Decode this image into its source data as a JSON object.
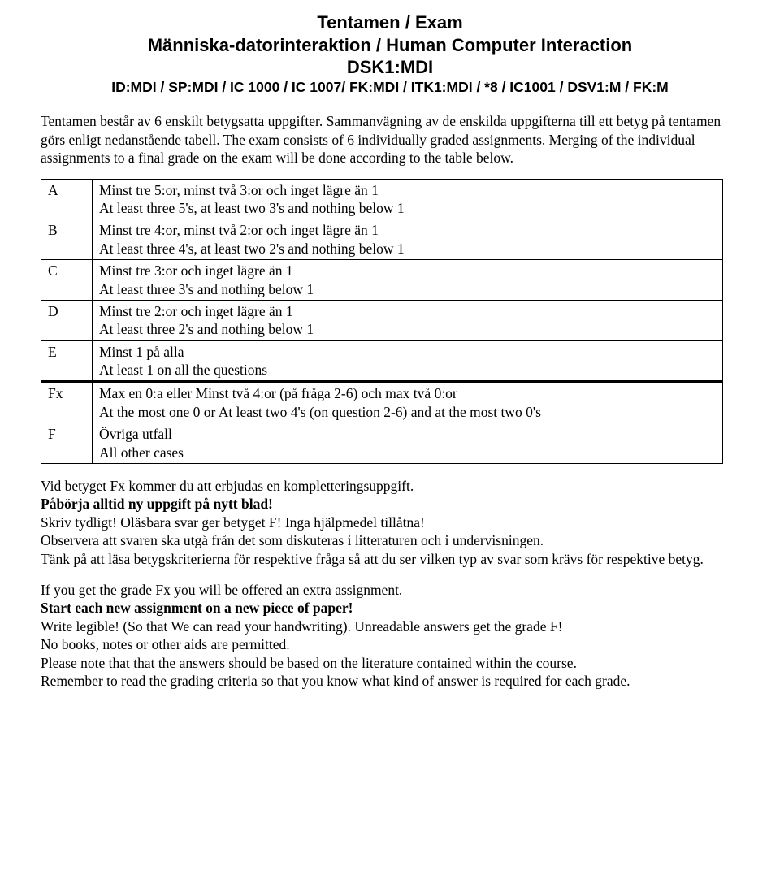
{
  "title": {
    "line1": "Tentamen / Exam",
    "line2": "Människa-datorinteraktion / Human Computer Interaction",
    "line3": "DSK1:MDI",
    "line4": "ID:MDI / SP:MDI / IC 1000 / IC 1007/ FK:MDI / ITK1:MDI / *8 / IC1001 / DSV1:M / FK:M"
  },
  "intro": "Tentamen består av 6 enskilt betygsatta uppgifter. Sammanvägning av de enskilda uppgifterna till ett betyg på tentamen görs enligt nedanstående tabell.\nThe exam consists of 6 individually graded assignments. Merging of the individual assignments to a final grade on the exam will be done according to the table below.",
  "grades": [
    {
      "g": "A",
      "sv": "Minst tre 5:or, minst två 3:or och inget lägre än 1",
      "en": "At least three 5's, at least two 3's and nothing below 1"
    },
    {
      "g": "B",
      "sv": "Minst tre 4:or, minst två 2:or och inget lägre än 1",
      "en": "At least three 4's, at least two 2's and nothing below 1"
    },
    {
      "g": "C",
      "sv": "Minst tre 3:or och inget lägre än 1",
      "en": "At least three 3's and nothing below 1"
    },
    {
      "g": "D",
      "sv": "Minst tre 2:or och inget lägre än 1",
      "en": "At least three 2's and nothing below 1"
    },
    {
      "g": "E",
      "sv": "Minst 1 på alla",
      "en": "At least 1 on all the questions"
    },
    {
      "g": "Fx",
      "sv": "Max en 0:a eller Minst två 4:or (på fråga 2-6) och max två 0:or",
      "en": "At the most one 0 or At least two 4's (on question 2-6) and at the most two 0's"
    },
    {
      "g": "F",
      "sv": "Övriga utfall",
      "en": "All other cases"
    }
  ],
  "notes": {
    "sv1": "Vid betyget Fx kommer du att erbjudas en kompletteringsuppgift.",
    "sv2": "Påbörja alltid ny uppgift på nytt blad!",
    "sv3": "Skriv tydligt! Oläsbara svar ger betyget F! Inga hjälpmedel tillåtna!",
    "sv4": "Observera att svaren ska utgå från det som diskuteras i litteraturen och i undervisningen.",
    "sv5": "Tänk på att läsa betygskriterierna för respektive fråga så att du ser vilken typ av svar som krävs för respektive betyg.",
    "en1": "If you get the grade Fx you will be offered an extra assignment.",
    "en2": "Start each new assignment on a new piece of paper!",
    "en3": "Write legible! (So that We can read your handwriting). Unreadable answers get the grade F!",
    "en4": "No books, notes or other aids are permitted.",
    "en5": "Please note that that the answers should be based on the literature contained within the course.",
    "en6": "Remember to read the grading criteria so that you know what kind of answer is required for each grade."
  }
}
